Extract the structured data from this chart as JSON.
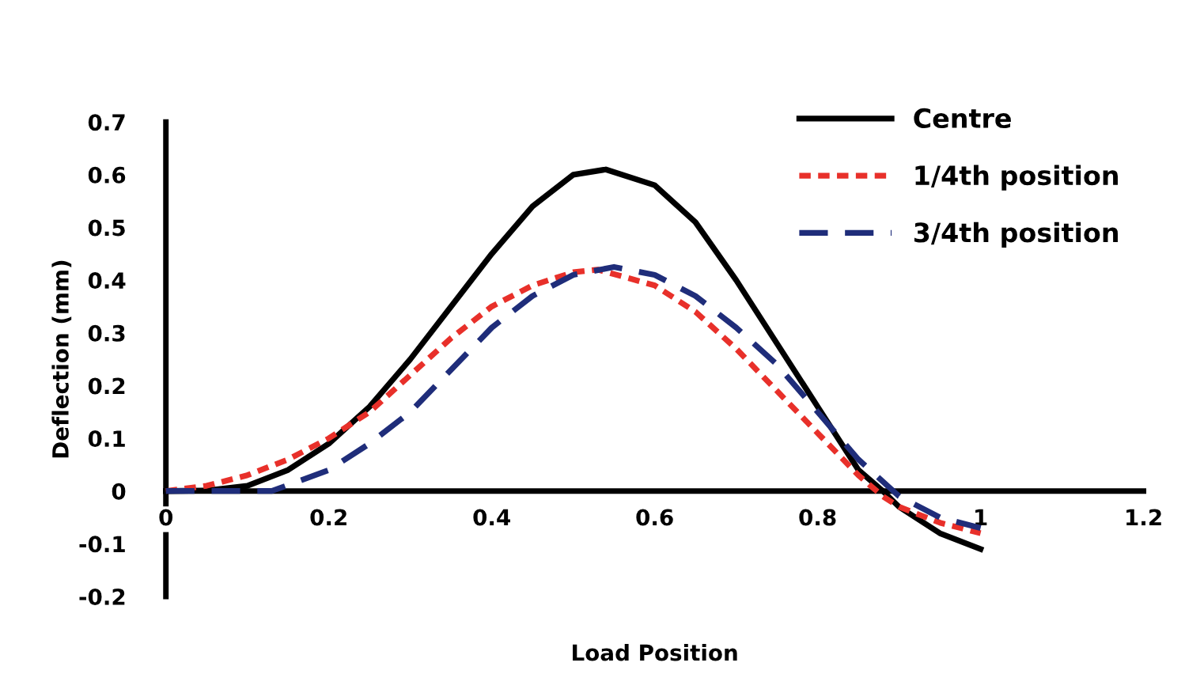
{
  "chart_data": {
    "type": "line",
    "xlabel": "Load Position",
    "ylabel": "Deflection (mm)",
    "xlim": [
      0,
      1.2
    ],
    "xticks": [
      0,
      0.2,
      0.4,
      0.6,
      0.8,
      1,
      1.2
    ],
    "ylim": [
      -0.2,
      0.7
    ],
    "yticks": [
      -0.2,
      -0.1,
      0,
      0.1,
      0.2,
      0.3,
      0.4,
      0.5,
      0.6,
      0.7
    ],
    "grid": false,
    "legend": "top right",
    "marker": "none",
    "series": [
      {
        "name": "Centre",
        "color": "#000000",
        "line_style": "solid",
        "x": [
          0,
          0.05,
          0.1,
          0.15,
          0.2,
          0.25,
          0.3,
          0.35,
          0.4,
          0.45,
          0.5,
          0.54,
          0.6,
          0.65,
          0.7,
          0.75,
          0.8,
          0.85,
          0.88,
          0.9,
          0.95,
          1.0
        ],
        "values": [
          0,
          0.001,
          0.01,
          0.04,
          0.09,
          0.16,
          0.25,
          0.35,
          0.45,
          0.54,
          0.6,
          0.61,
          0.58,
          0.51,
          0.4,
          0.28,
          0.16,
          0.04,
          0.0,
          -0.03,
          -0.08,
          -0.11
        ]
      },
      {
        "name": "1/4th position",
        "color": "#e8302a",
        "line_style": "dotted",
        "x": [
          0,
          0.05,
          0.1,
          0.15,
          0.2,
          0.25,
          0.3,
          0.35,
          0.4,
          0.45,
          0.5,
          0.53,
          0.6,
          0.65,
          0.7,
          0.75,
          0.8,
          0.85,
          0.88,
          0.9,
          0.95,
          1.0
        ],
        "values": [
          0,
          0.01,
          0.03,
          0.06,
          0.1,
          0.15,
          0.22,
          0.29,
          0.35,
          0.39,
          0.415,
          0.42,
          0.39,
          0.34,
          0.27,
          0.19,
          0.11,
          0.03,
          -0.01,
          -0.03,
          -0.06,
          -0.08
        ]
      },
      {
        "name": "3/4th position",
        "color": "#1f2d7a",
        "line_style": "dashed",
        "x": [
          0,
          0.05,
          0.1,
          0.13,
          0.2,
          0.25,
          0.3,
          0.35,
          0.4,
          0.45,
          0.5,
          0.55,
          0.6,
          0.65,
          0.7,
          0.75,
          0.8,
          0.85,
          0.9,
          0.95,
          1.0
        ],
        "values": [
          0,
          0,
          0,
          0,
          0.04,
          0.09,
          0.15,
          0.23,
          0.31,
          0.37,
          0.41,
          0.425,
          0.41,
          0.37,
          0.31,
          0.24,
          0.15,
          0.06,
          -0.01,
          -0.05,
          -0.07
        ]
      }
    ]
  }
}
